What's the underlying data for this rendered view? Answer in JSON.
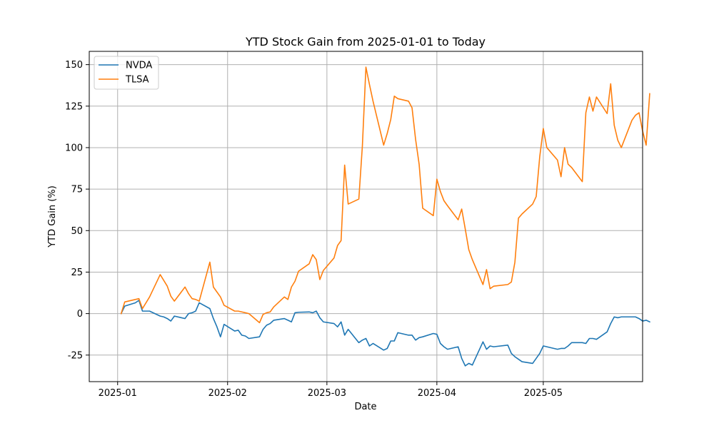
{
  "chart_data": {
    "type": "line",
    "title": "YTD Stock Gain from 2025-01-01 to Today",
    "xlabel": "Date",
    "ylabel": "YTD Gain (%)",
    "xlim": [
      "2024-12-24",
      "2025-05-29"
    ],
    "ylim": [
      -41,
      158
    ],
    "x_ticks": [
      {
        "date": "2025-01-01",
        "label": "2025-01"
      },
      {
        "date": "2025-02-01",
        "label": "2025-02"
      },
      {
        "date": "2025-03-01",
        "label": "2025-03"
      },
      {
        "date": "2025-04-01",
        "label": "2025-04"
      },
      {
        "date": "2025-05-01",
        "label": "2025-05"
      }
    ],
    "y_ticks": [
      -25,
      0,
      25,
      50,
      75,
      100,
      125,
      150
    ],
    "grid": true,
    "legend_position": "upper-left",
    "series": [
      {
        "name": "NVDA",
        "color": "#1f77b4",
        "points": [
          [
            "2025-01-02",
            0
          ],
          [
            "2025-01-03",
            4.5
          ],
          [
            "2025-01-06",
            6.5
          ],
          [
            "2025-01-07",
            8
          ],
          [
            "2025-01-08",
            1.5
          ],
          [
            "2025-01-10",
            1.5
          ],
          [
            "2025-01-13",
            -1.5
          ],
          [
            "2025-01-14",
            -2
          ],
          [
            "2025-01-15",
            -3
          ],
          [
            "2025-01-16",
            -4.5
          ],
          [
            "2025-01-17",
            -1.5
          ],
          [
            "2025-01-20",
            -3
          ],
          [
            "2025-01-21",
            0
          ],
          [
            "2025-01-22",
            0.5
          ],
          [
            "2025-01-23",
            1.5
          ],
          [
            "2025-01-24",
            6.5
          ],
          [
            "2025-01-27",
            3
          ],
          [
            "2025-01-28",
            -3
          ],
          [
            "2025-01-29",
            -8
          ],
          [
            "2025-01-30",
            -14
          ],
          [
            "2025-01-31",
            -6.5
          ],
          [
            "2025-02-03",
            -10.5
          ],
          [
            "2025-02-04",
            -10
          ],
          [
            "2025-02-05",
            -13
          ],
          [
            "2025-02-06",
            -13.5
          ],
          [
            "2025-02-07",
            -15
          ],
          [
            "2025-02-10",
            -14
          ],
          [
            "2025-02-11",
            -9.5
          ],
          [
            "2025-02-12",
            -7
          ],
          [
            "2025-02-13",
            -6
          ],
          [
            "2025-02-14",
            -4
          ],
          [
            "2025-02-17",
            -3
          ],
          [
            "2025-02-18",
            -4
          ],
          [
            "2025-02-19",
            -5
          ],
          [
            "2025-02-20",
            0.5
          ],
          [
            "2025-02-21",
            0.8
          ],
          [
            "2025-02-24",
            1
          ],
          [
            "2025-02-25",
            0.5
          ],
          [
            "2025-02-26",
            1.5
          ],
          [
            "2025-02-27",
            -2.5
          ],
          [
            "2025-02-28",
            -5
          ],
          [
            "2025-03-03",
            -6
          ],
          [
            "2025-03-04",
            -8
          ],
          [
            "2025-03-05",
            -5
          ],
          [
            "2025-03-06",
            -13
          ],
          [
            "2025-03-07",
            -9.5
          ],
          [
            "2025-03-10",
            -17.5
          ],
          [
            "2025-03-11",
            -16
          ],
          [
            "2025-03-12",
            -15
          ],
          [
            "2025-03-13",
            -19.5
          ],
          [
            "2025-03-14",
            -18
          ],
          [
            "2025-03-17",
            -22
          ],
          [
            "2025-03-18",
            -21
          ],
          [
            "2025-03-19",
            -16.5
          ],
          [
            "2025-03-20",
            -16.5
          ],
          [
            "2025-03-21",
            -11.5
          ],
          [
            "2025-03-24",
            -13
          ],
          [
            "2025-03-25",
            -13
          ],
          [
            "2025-03-26",
            -16
          ],
          [
            "2025-03-27",
            -14.5
          ],
          [
            "2025-03-28",
            -14
          ],
          [
            "2025-03-31",
            -12
          ],
          [
            "2025-04-01",
            -12.5
          ],
          [
            "2025-04-02",
            -18
          ],
          [
            "2025-04-03",
            -20
          ],
          [
            "2025-04-04",
            -21.5
          ],
          [
            "2025-04-07",
            -20
          ],
          [
            "2025-04-08",
            -27
          ],
          [
            "2025-04-09",
            -31.5
          ],
          [
            "2025-04-10",
            -30
          ],
          [
            "2025-04-11",
            -31
          ],
          [
            "2025-04-14",
            -17
          ],
          [
            "2025-04-15",
            -21.5
          ],
          [
            "2025-04-16",
            -19.5
          ],
          [
            "2025-04-17",
            -20
          ],
          [
            "2025-04-21",
            -19
          ],
          [
            "2025-04-22",
            -24
          ],
          [
            "2025-04-23",
            -26
          ],
          [
            "2025-04-24",
            -27.5
          ],
          [
            "2025-04-25",
            -29
          ],
          [
            "2025-04-28",
            -30
          ],
          [
            "2025-04-29",
            -27
          ],
          [
            "2025-04-30",
            -24
          ],
          [
            "2025-05-01",
            -19.5
          ],
          [
            "2025-05-02",
            -20
          ],
          [
            "2025-05-05",
            -21.5
          ],
          [
            "2025-05-06",
            -21
          ],
          [
            "2025-05-07",
            -21
          ],
          [
            "2025-05-08",
            -19.5
          ],
          [
            "2025-05-09",
            -17.5
          ],
          [
            "2025-05-12",
            -17.5
          ],
          [
            "2025-05-13",
            -18
          ],
          [
            "2025-05-14",
            -15
          ],
          [
            "2025-05-15",
            -15
          ],
          [
            "2025-05-16",
            -15.5
          ],
          [
            "2025-05-19",
            -11
          ],
          [
            "2025-05-20",
            -6
          ],
          [
            "2025-05-21",
            -2
          ],
          [
            "2025-05-22",
            -2.5
          ],
          [
            "2025-05-23",
            -2
          ],
          [
            "2025-05-26",
            -2
          ],
          [
            "2025-05-27",
            -2
          ],
          [
            "2025-05-28",
            -3
          ],
          [
            "2025-05-29",
            -4.5
          ],
          [
            "2025-05-30",
            -4
          ],
          [
            "2025-05-31",
            -5
          ]
        ]
      },
      {
        "name": "TLSA",
        "color": "#ff7f0e",
        "points": [
          [
            "2025-01-02",
            0
          ],
          [
            "2025-01-03",
            7
          ],
          [
            "2025-01-06",
            8.5
          ],
          [
            "2025-01-07",
            9
          ],
          [
            "2025-01-08",
            3
          ],
          [
            "2025-01-10",
            10
          ],
          [
            "2025-01-13",
            23.5
          ],
          [
            "2025-01-14",
            20
          ],
          [
            "2025-01-15",
            16.5
          ],
          [
            "2025-01-16",
            10.5
          ],
          [
            "2025-01-17",
            7.5
          ],
          [
            "2025-01-20",
            16
          ],
          [
            "2025-01-21",
            12
          ],
          [
            "2025-01-22",
            9
          ],
          [
            "2025-01-23",
            8.5
          ],
          [
            "2025-01-24",
            7.5
          ],
          [
            "2025-01-27",
            31
          ],
          [
            "2025-01-28",
            16
          ],
          [
            "2025-01-29",
            13
          ],
          [
            "2025-01-30",
            10
          ],
          [
            "2025-01-31",
            5
          ],
          [
            "2025-02-03",
            1.5
          ],
          [
            "2025-02-04",
            1.5
          ],
          [
            "2025-02-05",
            1
          ],
          [
            "2025-02-06",
            0.5
          ],
          [
            "2025-02-07",
            0
          ],
          [
            "2025-02-10",
            -5.5
          ],
          [
            "2025-02-11",
            -0.5
          ],
          [
            "2025-02-12",
            0.5
          ],
          [
            "2025-02-13",
            1
          ],
          [
            "2025-02-14",
            4
          ],
          [
            "2025-02-17",
            10
          ],
          [
            "2025-02-18",
            8.5
          ],
          [
            "2025-02-19",
            16
          ],
          [
            "2025-02-20",
            19.5
          ],
          [
            "2025-02-21",
            25.5
          ],
          [
            "2025-02-24",
            30
          ],
          [
            "2025-02-25",
            35.5
          ],
          [
            "2025-02-26",
            32.5
          ],
          [
            "2025-02-27",
            20.5
          ],
          [
            "2025-02-28",
            26
          ],
          [
            "2025-03-03",
            33.5
          ],
          [
            "2025-03-04",
            41
          ],
          [
            "2025-03-05",
            44
          ],
          [
            "2025-03-06",
            89.5
          ],
          [
            "2025-03-07",
            66
          ],
          [
            "2025-03-10",
            69
          ],
          [
            "2025-03-11",
            101
          ],
          [
            "2025-03-12",
            148.5
          ],
          [
            "2025-03-13",
            138
          ],
          [
            "2025-03-14",
            128
          ],
          [
            "2025-03-17",
            101.5
          ],
          [
            "2025-03-18",
            108.5
          ],
          [
            "2025-03-19",
            117
          ],
          [
            "2025-03-20",
            131
          ],
          [
            "2025-03-21",
            129.5
          ],
          [
            "2025-03-24",
            128
          ],
          [
            "2025-03-25",
            124
          ],
          [
            "2025-03-26",
            105
          ],
          [
            "2025-03-27",
            90
          ],
          [
            "2025-03-28",
            63.5
          ],
          [
            "2025-03-31",
            59
          ],
          [
            "2025-04-01",
            81
          ],
          [
            "2025-04-02",
            73.5
          ],
          [
            "2025-04-03",
            68
          ],
          [
            "2025-04-04",
            65
          ],
          [
            "2025-04-07",
            56.5
          ],
          [
            "2025-04-08",
            63
          ],
          [
            "2025-04-09",
            51
          ],
          [
            "2025-04-10",
            38.5
          ],
          [
            "2025-04-11",
            32.5
          ],
          [
            "2025-04-14",
            17.5
          ],
          [
            "2025-04-15",
            26.5
          ],
          [
            "2025-04-16",
            15
          ],
          [
            "2025-04-17",
            16.5
          ],
          [
            "2025-04-21",
            17.5
          ],
          [
            "2025-04-22",
            19
          ],
          [
            "2025-04-23",
            31
          ],
          [
            "2025-04-24",
            57.5
          ],
          [
            "2025-04-25",
            60
          ],
          [
            "2025-04-28",
            66
          ],
          [
            "2025-04-29",
            70.5
          ],
          [
            "2025-04-30",
            94.5
          ],
          [
            "2025-05-01",
            111.5
          ],
          [
            "2025-05-02",
            100
          ],
          [
            "2025-05-05",
            92.5
          ],
          [
            "2025-05-06",
            82.5
          ],
          [
            "2025-05-07",
            100
          ],
          [
            "2025-05-08",
            90
          ],
          [
            "2025-05-09",
            88
          ],
          [
            "2025-05-12",
            79.5
          ],
          [
            "2025-05-13",
            121
          ],
          [
            "2025-05-14",
            130.5
          ],
          [
            "2025-05-15",
            122
          ],
          [
            "2025-05-16",
            130.5
          ],
          [
            "2025-05-19",
            120.5
          ],
          [
            "2025-05-20",
            138.5
          ],
          [
            "2025-05-21",
            113.5
          ],
          [
            "2025-05-22",
            104.5
          ],
          [
            "2025-05-23",
            100
          ],
          [
            "2025-05-26",
            116.5
          ],
          [
            "2025-05-27",
            119.5
          ],
          [
            "2025-05-28",
            121
          ],
          [
            "2025-05-29",
            110
          ],
          [
            "2025-05-30",
            101.5
          ],
          [
            "2025-05-31",
            132.5
          ]
        ]
      }
    ]
  }
}
